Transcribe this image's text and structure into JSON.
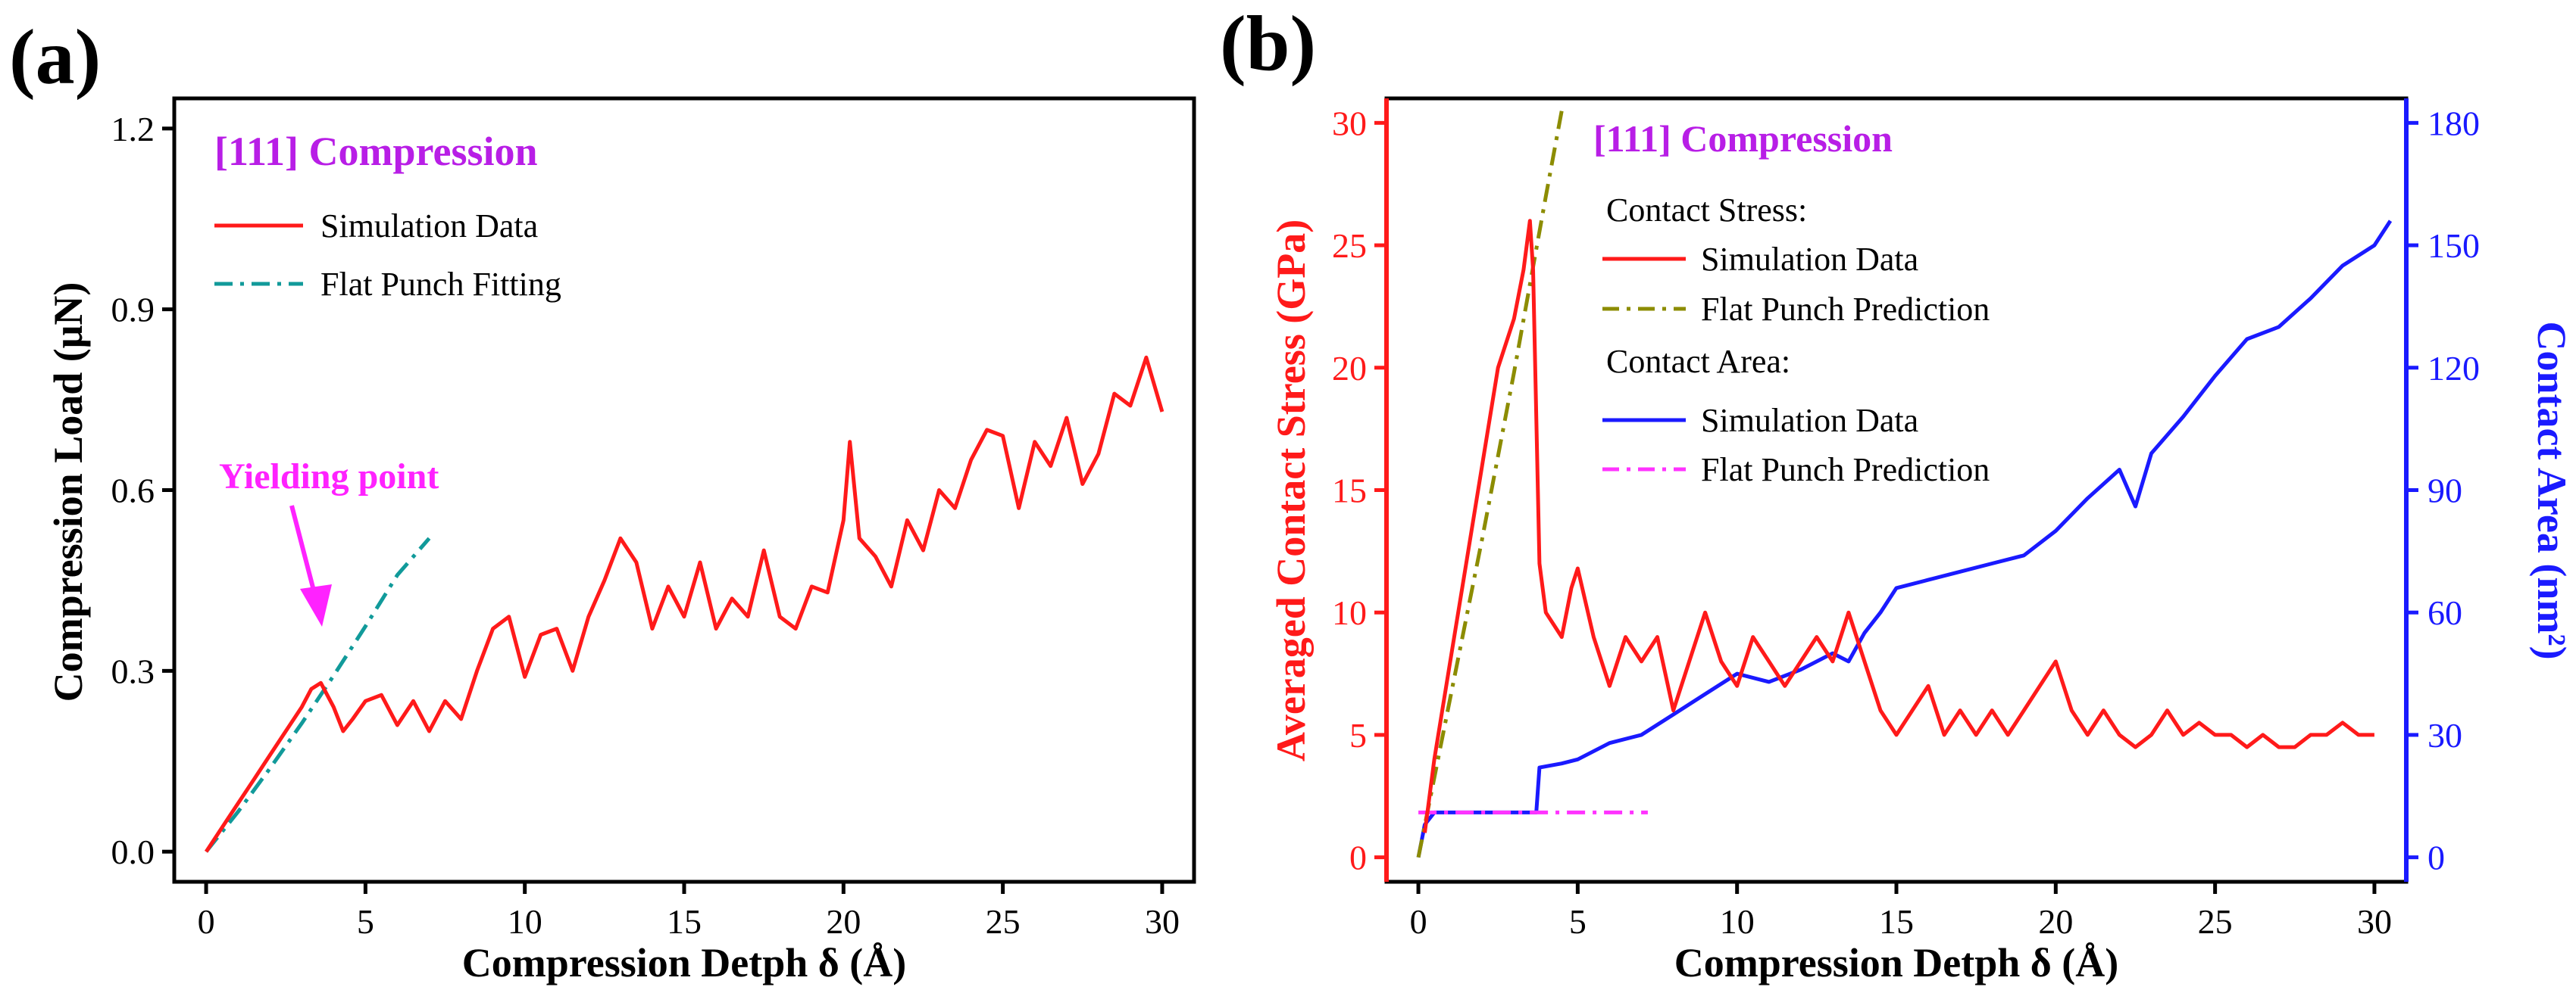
{
  "chart_data": [
    {
      "type": "line",
      "panel_label": "(a)",
      "title": "[111] Compression",
      "xlabel": "Compression Detph δ (Å)",
      "ylabel": "Compression Load (μN)",
      "xlim": [
        -1,
        31
      ],
      "ylim": [
        -0.05,
        1.25
      ],
      "xticks": [
        0,
        5,
        10,
        15,
        20,
        25,
        30
      ],
      "yticks": [
        0.0,
        0.3,
        0.6,
        0.9,
        1.2
      ],
      "ytick_labels": [
        "0.0",
        "0.3",
        "0.6",
        "0.9",
        "1.2"
      ],
      "grid": false,
      "legend_position": "top-left",
      "annotation": "Yielding point",
      "annotation_point": [
        3.5,
        0.28
      ],
      "series": [
        {
          "name": "Simulation Data",
          "color": "#ff1a1a",
          "style": "solid",
          "x": [
            0,
            0.5,
            1,
            1.5,
            2,
            2.5,
            3,
            3.3,
            3.6,
            4.0,
            4.3,
            4.6,
            5.0,
            5.5,
            6.0,
            6.5,
            7.0,
            7.5,
            8.0,
            8.5,
            9.0,
            9.5,
            10.0,
            10.5,
            11.0,
            11.5,
            12.0,
            12.5,
            13.0,
            13.5,
            14.0,
            14.5,
            15.0,
            15.5,
            16.0,
            16.5,
            17.0,
            17.5,
            18.0,
            18.5,
            19.0,
            19.5,
            20.0,
            20.2,
            20.5,
            21.0,
            21.5,
            22.0,
            22.5,
            23.0,
            23.5,
            24.0,
            24.5,
            25.0,
            25.5,
            26.0,
            26.5,
            27.0,
            27.5,
            28.0,
            28.5,
            29.0,
            29.5,
            30.0
          ],
          "y": [
            0.0,
            0.04,
            0.08,
            0.12,
            0.16,
            0.2,
            0.24,
            0.27,
            0.28,
            0.24,
            0.2,
            0.22,
            0.25,
            0.26,
            0.21,
            0.25,
            0.2,
            0.25,
            0.22,
            0.3,
            0.37,
            0.39,
            0.29,
            0.36,
            0.37,
            0.3,
            0.39,
            0.45,
            0.52,
            0.48,
            0.37,
            0.44,
            0.39,
            0.48,
            0.37,
            0.42,
            0.39,
            0.5,
            0.39,
            0.37,
            0.44,
            0.43,
            0.55,
            0.68,
            0.52,
            0.49,
            0.44,
            0.55,
            0.5,
            0.6,
            0.57,
            0.65,
            0.7,
            0.69,
            0.57,
            0.68,
            0.64,
            0.72,
            0.61,
            0.66,
            0.76,
            0.74,
            0.82,
            0.73
          ]
        },
        {
          "name": "Flat Punch Fitting",
          "color": "#119a9a",
          "style": "dashdot",
          "x": [
            0,
            1,
            2,
            3,
            4,
            5,
            6,
            7
          ],
          "y": [
            0.0,
            0.066,
            0.138,
            0.213,
            0.292,
            0.374,
            0.459,
            0.52
          ]
        }
      ]
    },
    {
      "type": "line",
      "panel_label": "(b)",
      "title": "[111] Compression",
      "xlabel": "Compression Detph δ (Å)",
      "ylabel_left": "Averaged Contact Stress (GPa)",
      "ylabel_right": "Contact Area (nm²)",
      "xlim": [
        -1,
        31
      ],
      "ylim_left": [
        -1,
        31
      ],
      "ylim_right": [
        -6,
        186
      ],
      "xticks": [
        0,
        5,
        10,
        15,
        20,
        25,
        30
      ],
      "yticks_left": [
        0,
        5,
        10,
        15,
        20,
        25,
        30
      ],
      "yticks_right": [
        0,
        30,
        60,
        90,
        120,
        150,
        180
      ],
      "left_axis_color": "#ff1a1a",
      "right_axis_color": "#1a1aff",
      "grid": false,
      "legend_position": "top-center",
      "legend_group_stress": "Contact Stress:",
      "legend_group_area": "Contact Area:",
      "series": [
        {
          "name": "Simulation Data",
          "group": "Contact Stress",
          "axis": "left",
          "color": "#ff1a1a",
          "style": "solid",
          "x": [
            0.2,
            0.5,
            1.0,
            1.5,
            2.0,
            2.5,
            3.0,
            3.3,
            3.5,
            3.6,
            3.8,
            4.0,
            4.5,
            4.8,
            5.0,
            5.5,
            6.0,
            6.5,
            7.0,
            7.5,
            8.0,
            8.5,
            9.0,
            9.5,
            10.0,
            10.5,
            11.0,
            11.5,
            12.0,
            12.5,
            13.0,
            13.5,
            14.0,
            14.5,
            15.0,
            15.5,
            16.0,
            16.5,
            17.0,
            17.5,
            18.0,
            18.5,
            19.0,
            19.5,
            20.0,
            20.5,
            21.0,
            21.5,
            22.0,
            22.5,
            23.0,
            23.5,
            24.0,
            24.5,
            25.0,
            25.5,
            26.0,
            26.5,
            27.0,
            27.5,
            28.0,
            28.5,
            29.0,
            29.5,
            30.0
          ],
          "y": [
            1.0,
            4.0,
            8.0,
            12.0,
            16.0,
            20.0,
            22.0,
            24.0,
            26.0,
            24.0,
            12.0,
            10.0,
            9.0,
            11.0,
            11.8,
            9.0,
            7.0,
            9.0,
            8.0,
            9.0,
            6.0,
            8.0,
            10.0,
            8.0,
            7.0,
            9.0,
            8.0,
            7.0,
            8.0,
            9.0,
            8.0,
            10.0,
            8.0,
            6.0,
            5.0,
            6.0,
            7.0,
            5.0,
            6.0,
            5.0,
            6.0,
            5.0,
            6.0,
            7.0,
            8.0,
            6.0,
            5.0,
            6.0,
            5.0,
            4.5,
            5.0,
            6.0,
            5.0,
            5.5,
            5.0,
            5.0,
            4.5,
            5.0,
            4.5,
            4.5,
            5.0,
            5.0,
            5.5,
            5.0,
            5.0
          ]
        },
        {
          "name": "Flat Punch Prediction",
          "group": "Contact Stress",
          "axis": "left",
          "color": "#8c8c00",
          "style": "dashdot",
          "x": [
            0.0,
            1.0,
            2.0,
            3.0,
            4.0,
            4.5
          ],
          "y": [
            0.0,
            6.5,
            13.0,
            19.8,
            27.0,
            30.5
          ]
        },
        {
          "name": "Simulation Data",
          "group": "Contact Area",
          "axis": "right",
          "color": "#1a1aff",
          "style": "solid",
          "x": [
            0.0,
            0.2,
            0.5,
            1.0,
            2.0,
            3.0,
            3.7,
            3.8,
            4.5,
            5.0,
            6.0,
            7.0,
            8.0,
            9.0,
            10.0,
            11.0,
            12.0,
            13.0,
            13.5,
            14.0,
            14.5,
            15.0,
            16.0,
            17.0,
            18.0,
            19.0,
            20.0,
            21.0,
            22.0,
            22.5,
            23.0,
            24.0,
            25.0,
            26.0,
            27.0,
            28.0,
            29.0,
            30.0,
            30.5
          ],
          "y": [
            0,
            8,
            11,
            11,
            11,
            11,
            11,
            22,
            23,
            24,
            28,
            30,
            35,
            40,
            45,
            43,
            46,
            50,
            48,
            55,
            60,
            66,
            68,
            70,
            72,
            74,
            80,
            88,
            95,
            86,
            99,
            108,
            118,
            127,
            130,
            137,
            145,
            150,
            156
          ]
        },
        {
          "name": "Flat Punch Prediction",
          "group": "Contact Area",
          "axis": "right",
          "color": "#ff33ff",
          "style": "dashdot",
          "x": [
            0.0,
            7.2
          ],
          "y": [
            11,
            11
          ]
        }
      ]
    }
  ]
}
